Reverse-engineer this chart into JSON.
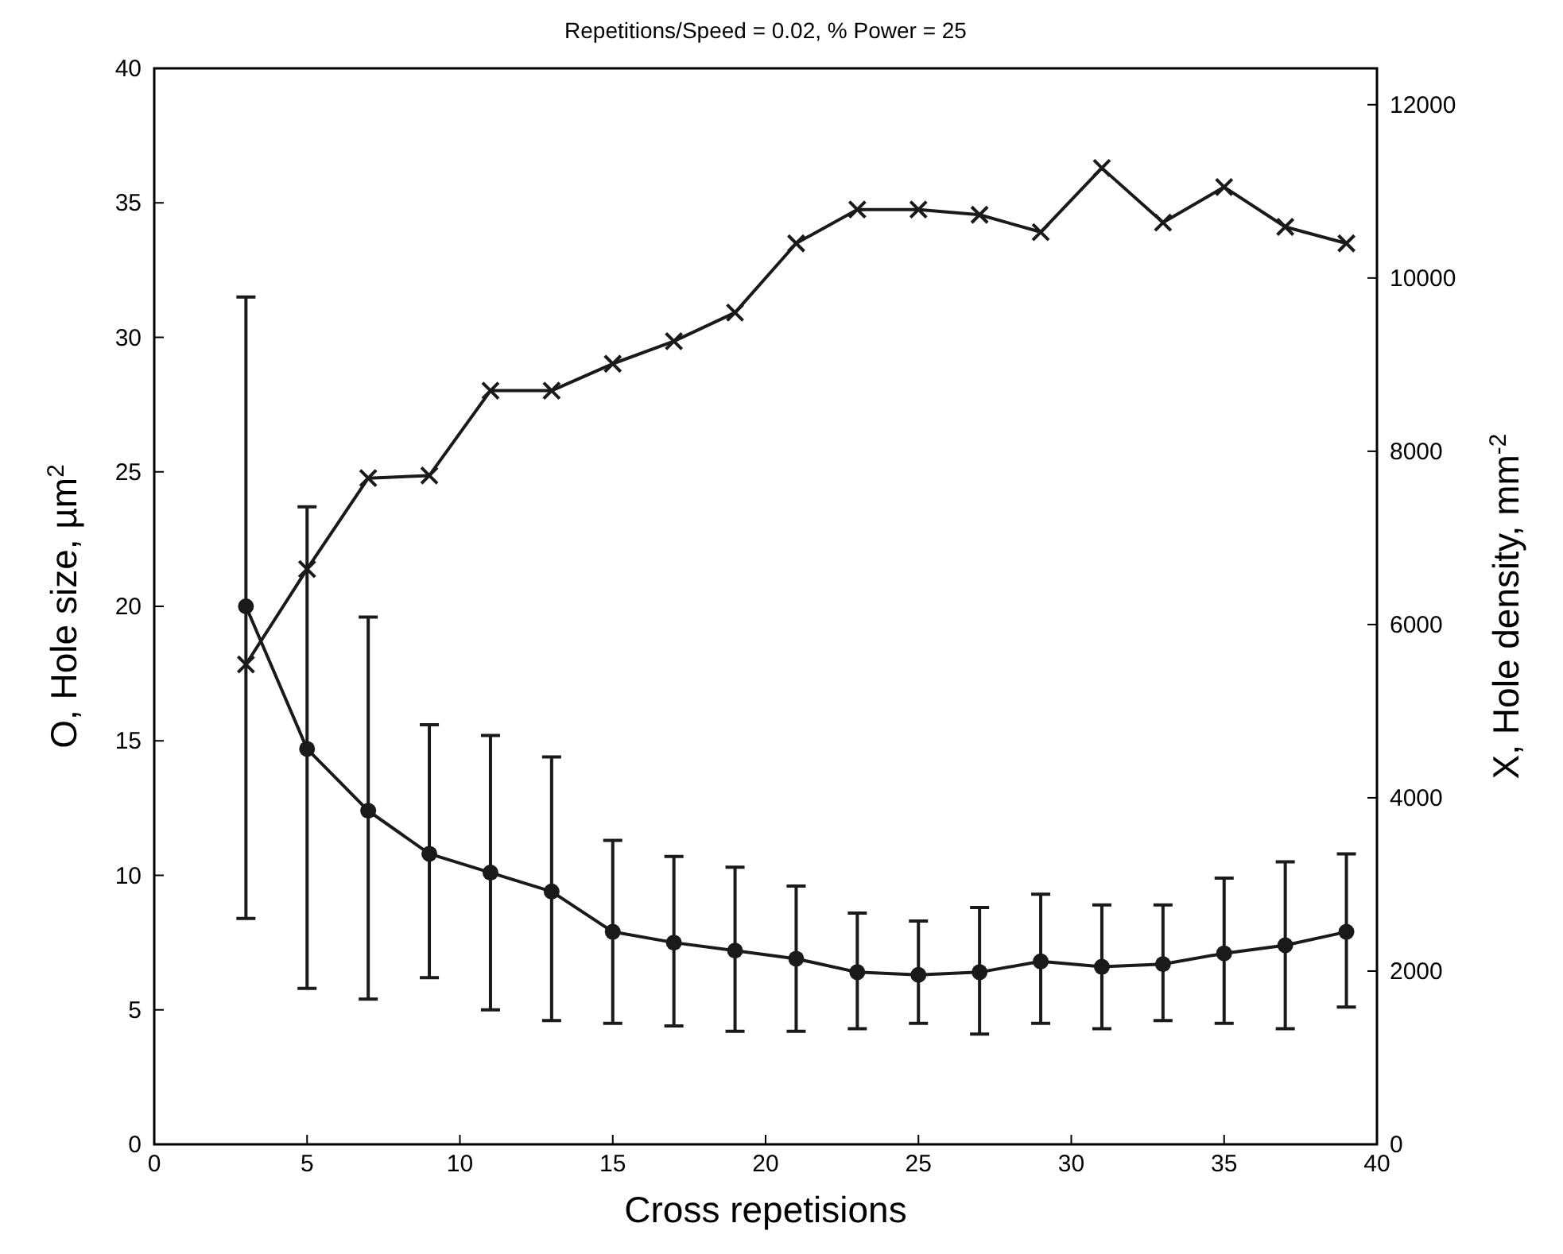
{
  "chart_data": {
    "type": "line",
    "title": "Repetitions/Speed = 0.02, % Power = 25",
    "xlabel": "Cross repetisions",
    "ylabel": "O, Hole size, µm$^{2}$",
    "y2label": "X, Hole density, mm$^{-2}$",
    "x": [
      3,
      5,
      7,
      9,
      11,
      13,
      15,
      17,
      19,
      21,
      23,
      25,
      27,
      29,
      31,
      33,
      35,
      37,
      39
    ],
    "xlim": [
      0,
      40
    ],
    "xticks": [
      0,
      5,
      10,
      15,
      20,
      25,
      30,
      35,
      40
    ],
    "ylim": [
      0,
      40
    ],
    "yticks": [
      0,
      5,
      10,
      15,
      20,
      25,
      30,
      35,
      40
    ],
    "y2lim": [
      0,
      12420
    ],
    "y2ticks": [
      0,
      2000,
      4000,
      6000,
      8000,
      10000,
      12000
    ],
    "grid": false,
    "line_style": "solid",
    "series": [
      {
        "color": "#1a1a1a",
        "marker": "circle",
        "values": [
          20.0,
          14.7,
          12.4,
          10.8,
          10.1,
          9.4,
          7.9,
          7.5,
          7.2,
          6.9,
          6.4,
          6.3,
          6.4,
          6.8,
          6.6,
          6.7,
          7.1,
          7.4,
          7.9
        ],
        "errors": [
          [
            8.4,
            31.5
          ],
          [
            5.8,
            23.7
          ],
          [
            5.4,
            19.6
          ],
          [
            6.2,
            15.6
          ],
          [
            5.0,
            15.2
          ],
          [
            4.6,
            14.4
          ],
          [
            4.5,
            11.3
          ],
          [
            4.4,
            10.7
          ],
          [
            4.2,
            10.3
          ],
          [
            4.2,
            9.6
          ],
          [
            4.3,
            8.6
          ],
          [
            4.5,
            8.3
          ],
          [
            4.1,
            8.8
          ],
          [
            4.5,
            9.3
          ],
          [
            4.3,
            8.9
          ],
          [
            4.6,
            8.9
          ],
          [
            4.5,
            9.9
          ],
          [
            4.3,
            10.5
          ],
          [
            5.1,
            10.8
          ]
        ]
      },
      {
        "color": "#1a1a1a",
        "marker": "cross",
        "axis": "y2",
        "values": [
          5540,
          6640,
          7690,
          7720,
          8700,
          8700,
          9010,
          9270,
          9600,
          10400,
          10790,
          10790,
          10730,
          10530,
          11270,
          10640,
          11050,
          10590,
          10400
        ]
      }
    ]
  }
}
